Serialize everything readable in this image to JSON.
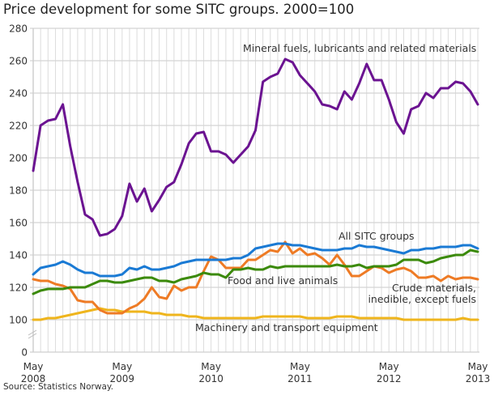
{
  "title": "Price development for some SITC groups. 2000=100",
  "source": "Source: Statistics Norway.",
  "chart_data": {
    "type": "line",
    "title": "Price development for some SITC groups. 2000=100",
    "x_start": "May 2008",
    "x_end": "May 2013",
    "x_frequency": "monthly",
    "x_ticks": [
      {
        "month": "May",
        "year": "2008"
      },
      {
        "month": "May",
        "year": "2009"
      },
      {
        "month": "May",
        "year": "2010"
      },
      {
        "month": "May",
        "year": "2011"
      },
      {
        "month": "May",
        "year": "2012"
      },
      {
        "month": "May",
        "year": "2013"
      }
    ],
    "y_ticks": [
      0,
      100,
      120,
      140,
      160,
      180,
      200,
      220,
      240,
      260,
      280
    ],
    "ylim": [
      0,
      280
    ],
    "y_axis_break": "between 0 and 100",
    "grid": true,
    "legend": "labels placed beside lines",
    "series": [
      {
        "name": "Mineral fuels, lubricants and related materials",
        "color": "#6b1391",
        "label_lines": [
          "Mineral fuels, lubricants and related materials"
        ],
        "values": [
          192,
          220,
          223,
          224,
          233,
          207,
          185,
          165,
          162,
          152,
          153,
          156,
          164,
          184,
          173,
          181,
          167,
          174,
          182,
          185,
          196,
          209,
          215,
          216,
          204,
          204,
          202,
          197,
          202,
          207,
          217,
          247,
          250,
          252,
          261,
          259,
          251,
          246,
          241,
          233,
          232,
          230,
          241,
          236,
          246,
          258,
          248,
          248,
          236,
          222,
          215,
          230,
          232,
          240,
          237,
          243,
          243,
          247,
          246,
          241,
          233
        ]
      },
      {
        "name": "All SITC groups",
        "color": "#1a7ad4",
        "label_lines": [
          "All SITC groups"
        ],
        "values": [
          128,
          132,
          133,
          134,
          136,
          134,
          131,
          129,
          129,
          127,
          127,
          127,
          128,
          132,
          131,
          133,
          131,
          131,
          132,
          133,
          135,
          136,
          137,
          137,
          137,
          137,
          137,
          138,
          138,
          140,
          144,
          145,
          146,
          147,
          147,
          146,
          146,
          145,
          144,
          143,
          143,
          143,
          144,
          144,
          146,
          145,
          145,
          144,
          143,
          142,
          141,
          143,
          143,
          144,
          144,
          145,
          145,
          145,
          146,
          146,
          144
        ]
      },
      {
        "name": "Food and live animals",
        "color": "#3b8a0a",
        "label_lines": [
          "Food and live animals"
        ],
        "values": [
          116,
          118,
          119,
          119,
          119,
          120,
          120,
          120,
          122,
          124,
          124,
          123,
          123,
          124,
          125,
          126,
          126,
          124,
          124,
          123,
          125,
          126,
          127,
          129,
          128,
          128,
          126,
          131,
          131,
          132,
          131,
          131,
          133,
          132,
          133,
          133,
          133,
          133,
          133,
          133,
          133,
          134,
          133,
          133,
          134,
          132,
          133,
          133,
          133,
          134,
          137,
          137,
          137,
          135,
          136,
          138,
          139,
          140,
          140,
          143,
          142
        ]
      },
      {
        "name": "Crude materials, inedible, except fuels",
        "color": "#ee7b25",
        "label_lines": [
          "Crude materials,",
          "inedible, except fuels"
        ],
        "values": [
          125,
          124,
          124,
          122,
          121,
          119,
          112,
          111,
          111,
          106,
          104,
          104,
          104,
          107,
          109,
          113,
          120,
          114,
          113,
          121,
          118,
          120,
          120,
          130,
          139,
          137,
          132,
          132,
          132,
          137,
          137,
          140,
          143,
          142,
          148,
          141,
          144,
          140,
          141,
          138,
          134,
          140,
          134,
          127,
          127,
          130,
          133,
          132,
          129,
          131,
          132,
          130,
          126,
          126,
          127,
          124,
          127,
          125,
          126,
          126,
          125
        ]
      },
      {
        "name": "Machinery and transport equipment",
        "color": "#efb51d",
        "label_lines": [
          "Machinery and transport equipment"
        ],
        "values": [
          100,
          100,
          101,
          101,
          102,
          103,
          104,
          105,
          106,
          107,
          106,
          106,
          105,
          105,
          105,
          105,
          104,
          104,
          103,
          103,
          103,
          102,
          102,
          101,
          101,
          101,
          101,
          101,
          101,
          101,
          101,
          102,
          102,
          102,
          102,
          102,
          102,
          101,
          101,
          101,
          101,
          102,
          102,
          102,
          101,
          101,
          101,
          101,
          101,
          101,
          100,
          100,
          100,
          100,
          100,
          100,
          100,
          100,
          101,
          100,
          100
        ]
      }
    ]
  }
}
